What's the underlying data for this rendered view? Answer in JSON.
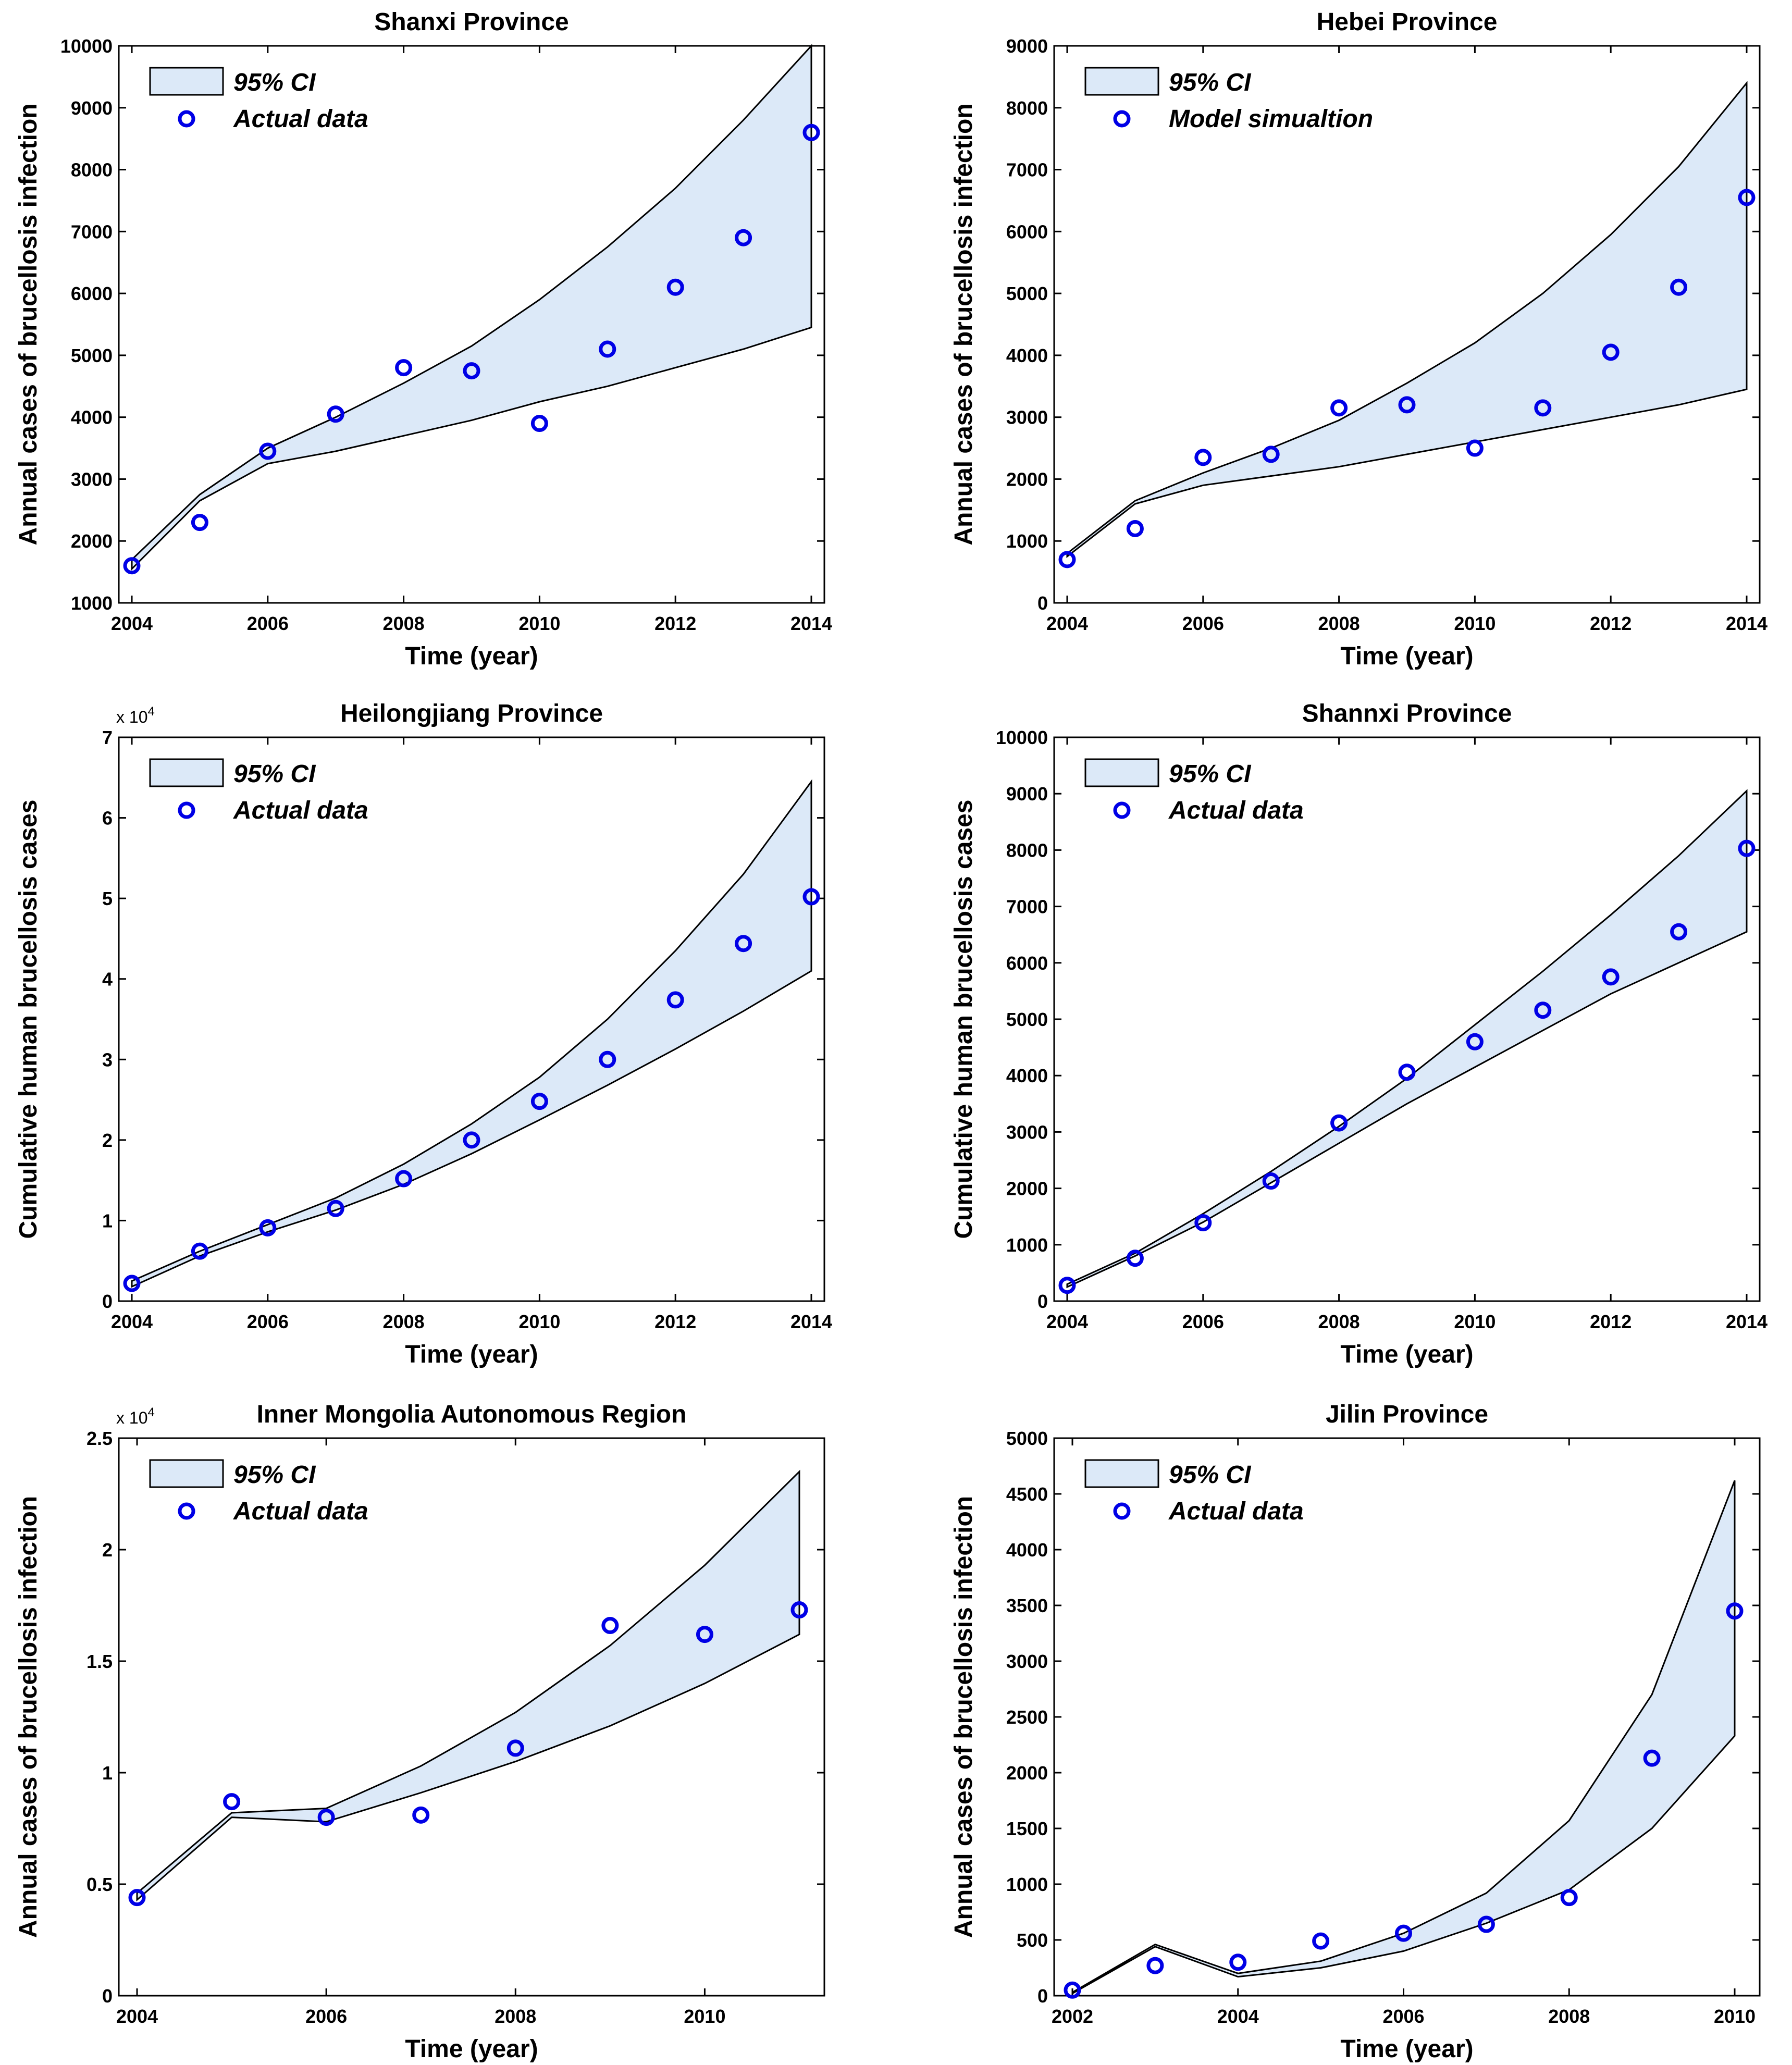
{
  "chart_data": [
    {
      "type": "line",
      "title": "Shanxi Province",
      "xlabel": "Time (year)",
      "ylabel": "Annual cases of brucellosis infection",
      "xlim": [
        2004,
        2014
      ],
      "ylim": [
        1000,
        10000
      ],
      "xticks": [
        2004,
        2006,
        2008,
        2010,
        2012,
        2014
      ],
      "xtick_labels": [
        "2004",
        "2006",
        "2008",
        "2010",
        "2012",
        "2014"
      ],
      "yticks": [
        1000,
        2000,
        3000,
        4000,
        5000,
        6000,
        7000,
        8000,
        9000,
        10000
      ],
      "ytick_labels": [
        "1000",
        "2000",
        "3000",
        "4000",
        "5000",
        "6000",
        "7000",
        "8000",
        "9000",
        "10000"
      ],
      "multiplier": "",
      "legend": [
        "95% CI",
        "Actual data"
      ],
      "ci_x": [
        2004,
        2005,
        2006,
        2007,
        2008,
        2009,
        2010,
        2011,
        2012,
        2013,
        2014
      ],
      "ci_upper": [
        1700,
        2750,
        3500,
        4000,
        4550,
        5150,
        5900,
        6750,
        7700,
        8800,
        10000
      ],
      "ci_lower": [
        1550,
        2650,
        3250,
        3450,
        3700,
        3950,
        4250,
        4500,
        4800,
        5100,
        5450
      ],
      "points": {
        "x": [
          2004,
          2005,
          2006,
          2007,
          2008,
          2009,
          2010,
          2011,
          2012,
          2013,
          2014
        ],
        "y": [
          1600,
          2300,
          3450,
          4050,
          4800,
          4750,
          3900,
          5100,
          6100,
          6900,
          8600
        ]
      }
    },
    {
      "type": "line",
      "title": "Hebei Province",
      "xlabel": "Time (year)",
      "ylabel": "Annual cases of brucellosis infection",
      "xlim": [
        2004,
        2014
      ],
      "ylim": [
        0,
        9000
      ],
      "xticks": [
        2004,
        2006,
        2008,
        2010,
        2012,
        2014
      ],
      "xtick_labels": [
        "2004",
        "2006",
        "2008",
        "2010",
        "2012",
        "2014"
      ],
      "yticks": [
        0,
        1000,
        2000,
        3000,
        4000,
        5000,
        6000,
        7000,
        8000,
        9000
      ],
      "ytick_labels": [
        "0",
        "1000",
        "2000",
        "3000",
        "4000",
        "5000",
        "6000",
        "7000",
        "8000",
        "9000"
      ],
      "multiplier": "",
      "legend": [
        "95% CI",
        "Model simualtion"
      ],
      "ci_x": [
        2004,
        2005,
        2006,
        2007,
        2008,
        2009,
        2010,
        2011,
        2012,
        2013,
        2014
      ],
      "ci_upper": [
        800,
        1650,
        2100,
        2500,
        2950,
        3550,
        4200,
        5000,
        5950,
        7050,
        8400
      ],
      "ci_lower": [
        750,
        1600,
        1900,
        2050,
        2200,
        2400,
        2600,
        2800,
        3000,
        3200,
        3450
      ],
      "points": {
        "x": [
          2004,
          2005,
          2006,
          2007,
          2008,
          2009,
          2010,
          2011,
          2012,
          2013,
          2014
        ],
        "y": [
          700,
          1200,
          2350,
          2400,
          3150,
          3200,
          2500,
          3150,
          4050,
          5100,
          6550
        ]
      }
    },
    {
      "type": "line",
      "title": "Heilongjiang Province",
      "xlabel": "Time (year)",
      "ylabel": "Cumulative human brucellosis cases",
      "xlim": [
        2004,
        2014
      ],
      "ylim": [
        0,
        70000
      ],
      "xticks": [
        2004,
        2006,
        2008,
        2010,
        2012,
        2014
      ],
      "xtick_labels": [
        "2004",
        "2006",
        "2008",
        "2010",
        "2012",
        "2014"
      ],
      "yticks": [
        0,
        10000,
        20000,
        30000,
        40000,
        50000,
        60000,
        70000
      ],
      "ytick_labels": [
        "0",
        "1",
        "2",
        "3",
        "4",
        "5",
        "6",
        "7"
      ],
      "multiplier": "x 10",
      "multiplier_exp": "4",
      "legend": [
        "95% CI",
        "Actual data"
      ],
      "ci_x": [
        2004,
        2005,
        2006,
        2007,
        2008,
        2009,
        2010,
        2011,
        2012,
        2013,
        2014
      ],
      "ci_upper": [
        2500,
        6200,
        9500,
        12800,
        17000,
        22000,
        27800,
        35000,
        43500,
        53000,
        64500
      ],
      "ci_lower": [
        1800,
        5600,
        8600,
        11300,
        14500,
        18300,
        22500,
        26800,
        31300,
        36000,
        41000
      ],
      "points": {
        "x": [
          2004,
          2005,
          2006,
          2007,
          2008,
          2009,
          2010,
          2011,
          2012,
          2013,
          2014
        ],
        "y": [
          2200,
          6200,
          9100,
          11500,
          15200,
          20000,
          24800,
          30000,
          37400,
          44400,
          50200
        ]
      }
    },
    {
      "type": "line",
      "title": "Shannxi Province",
      "xlabel": "Time (year)",
      "ylabel": "Cumulative human brucellosis cases",
      "xlim": [
        2004,
        2014
      ],
      "ylim": [
        0,
        10000
      ],
      "xticks": [
        2004,
        2006,
        2008,
        2010,
        2012,
        2014
      ],
      "xtick_labels": [
        "2004",
        "2006",
        "2008",
        "2010",
        "2012",
        "2014"
      ],
      "yticks": [
        0,
        1000,
        2000,
        3000,
        4000,
        5000,
        6000,
        7000,
        8000,
        9000,
        10000
      ],
      "ytick_labels": [
        "0",
        "1000",
        "2000",
        "3000",
        "4000",
        "5000",
        "6000",
        "7000",
        "8000",
        "9000",
        "10000"
      ],
      "multiplier": "",
      "legend": [
        "95% CI",
        "Actual data"
      ],
      "ci_x": [
        2004,
        2005,
        2006,
        2007,
        2008,
        2009,
        2010,
        2011,
        2012,
        2013,
        2014
      ],
      "ci_upper": [
        300,
        850,
        1550,
        2300,
        3100,
        3950,
        4900,
        5850,
        6850,
        7900,
        9050
      ],
      "ci_lower": [
        250,
        800,
        1400,
        2100,
        2800,
        3500,
        4150,
        4800,
        5450,
        6000,
        6550
      ],
      "points": {
        "x": [
          2004,
          2005,
          2006,
          2007,
          2008,
          2009,
          2010,
          2011,
          2012,
          2013,
          2014
        ],
        "y": [
          280,
          760,
          1390,
          2130,
          3160,
          4060,
          4600,
          5160,
          5750,
          6550,
          8030
        ]
      }
    },
    {
      "type": "line",
      "title": "Inner Mongolia Autonomous Region",
      "xlabel": "Time (year)",
      "ylabel": "Annual cases of brucellosis infection",
      "xlim": [
        2004,
        2011
      ],
      "ylim": [
        0,
        25000
      ],
      "xticks": [
        2004,
        2006,
        2008,
        2010
      ],
      "xtick_labels": [
        "2004",
        "2006",
        "2008",
        "2010"
      ],
      "yticks": [
        0,
        5000,
        10000,
        15000,
        20000,
        25000
      ],
      "ytick_labels": [
        "0",
        "0.5",
        "1",
        "1.5",
        "2",
        "2.5"
      ],
      "multiplier": "x 10",
      "multiplier_exp": "4",
      "legend": [
        "95% CI",
        "Actual data"
      ],
      "ci_x": [
        2004,
        2005,
        2006,
        2007,
        2008,
        2009,
        2010,
        2011
      ],
      "ci_upper": [
        4600,
        8200,
        8400,
        10300,
        12700,
        15700,
        19300,
        23500
      ],
      "ci_lower": [
        4300,
        8000,
        7800,
        9100,
        10500,
        12100,
        14000,
        16200
      ],
      "points": {
        "x": [
          2004,
          2005,
          2006,
          2007,
          2008,
          2009,
          2010,
          2011
        ],
        "y": [
          4400,
          8700,
          8000,
          8100,
          11100,
          16600,
          16200,
          17300
        ]
      }
    },
    {
      "type": "line",
      "title": "Jilin Province",
      "xlabel": "Time (year)",
      "ylabel": "Annual cases of brucellosis infection",
      "xlim": [
        2002,
        2010
      ],
      "ylim": [
        0,
        5000
      ],
      "xticks": [
        2002,
        2004,
        2006,
        2008,
        2010
      ],
      "xtick_labels": [
        "2002",
        "2004",
        "2006",
        "2008",
        "2010"
      ],
      "yticks": [
        0,
        500,
        1000,
        1500,
        2000,
        2500,
        3000,
        3500,
        4000,
        4500,
        5000
      ],
      "ytick_labels": [
        "0",
        "500",
        "1000",
        "1500",
        "2000",
        "2500",
        "3000",
        "3500",
        "4000",
        "4500",
        "5000"
      ],
      "multiplier": "",
      "legend": [
        "95% CI",
        "Actual data"
      ],
      "ci_x": [
        2002,
        2003,
        2004,
        2005,
        2006,
        2007,
        2008,
        2009,
        2010
      ],
      "ci_upper": [
        30,
        460,
        200,
        310,
        560,
        920,
        1570,
        2700,
        4620
      ],
      "ci_lower": [
        20,
        440,
        170,
        250,
        400,
        650,
        950,
        1500,
        2330
      ],
      "points": {
        "x": [
          2002,
          2003,
          2004,
          2005,
          2006,
          2007,
          2008,
          2009,
          2010
        ],
        "y": [
          50,
          270,
          300,
          490,
          560,
          640,
          880,
          2130,
          3450
        ]
      }
    }
  ],
  "colors": {
    "ci_fill": "#dce9f8",
    "marker": "#0000e6",
    "axis": "#000000"
  }
}
